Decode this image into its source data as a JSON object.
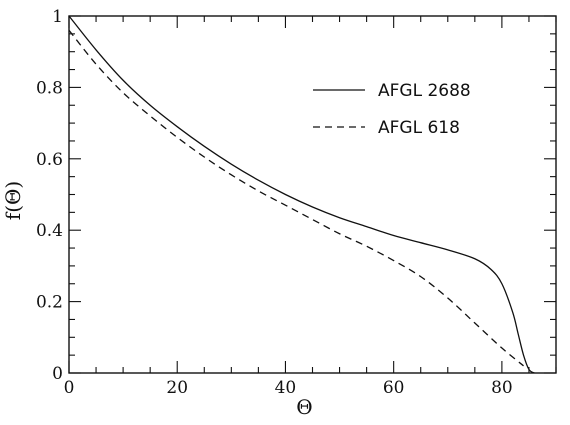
{
  "chart_data": {
    "type": "line",
    "xlabel": "Θ",
    "ylabel": "f(Θ)",
    "xlim": [
      0,
      90
    ],
    "ylim": [
      0,
      1
    ],
    "x_ticks": [
      0,
      20,
      40,
      60,
      80
    ],
    "y_ticks": [
      0,
      0.2,
      0.4,
      0.6,
      0.8,
      1
    ],
    "y_tick_labels": [
      "0",
      "0.2",
      "0.4",
      "0.6",
      "0.8",
      "1"
    ],
    "legend_position": "top-right",
    "grid": false,
    "series": [
      {
        "name": "AFGL 2688",
        "style": "solid",
        "x": [
          0,
          5,
          10,
          15,
          20,
          25,
          30,
          35,
          40,
          45,
          50,
          55,
          60,
          65,
          70,
          75,
          78,
          80,
          82,
          83,
          84,
          85,
          86
        ],
        "y": [
          1.0,
          0.905,
          0.82,
          0.75,
          0.69,
          0.635,
          0.585,
          0.54,
          0.5,
          0.465,
          0.435,
          0.41,
          0.385,
          0.365,
          0.345,
          0.32,
          0.29,
          0.25,
          0.17,
          0.11,
          0.05,
          0.01,
          0.0
        ]
      },
      {
        "name": "AFGL 618",
        "style": "dashed",
        "x": [
          0,
          5,
          10,
          15,
          20,
          25,
          30,
          35,
          40,
          45,
          50,
          55,
          60,
          65,
          70,
          75,
          80,
          84
        ],
        "y": [
          0.96,
          0.865,
          0.785,
          0.72,
          0.66,
          0.605,
          0.555,
          0.51,
          0.47,
          0.43,
          0.39,
          0.355,
          0.315,
          0.27,
          0.21,
          0.14,
          0.07,
          0.02
        ]
      }
    ]
  }
}
